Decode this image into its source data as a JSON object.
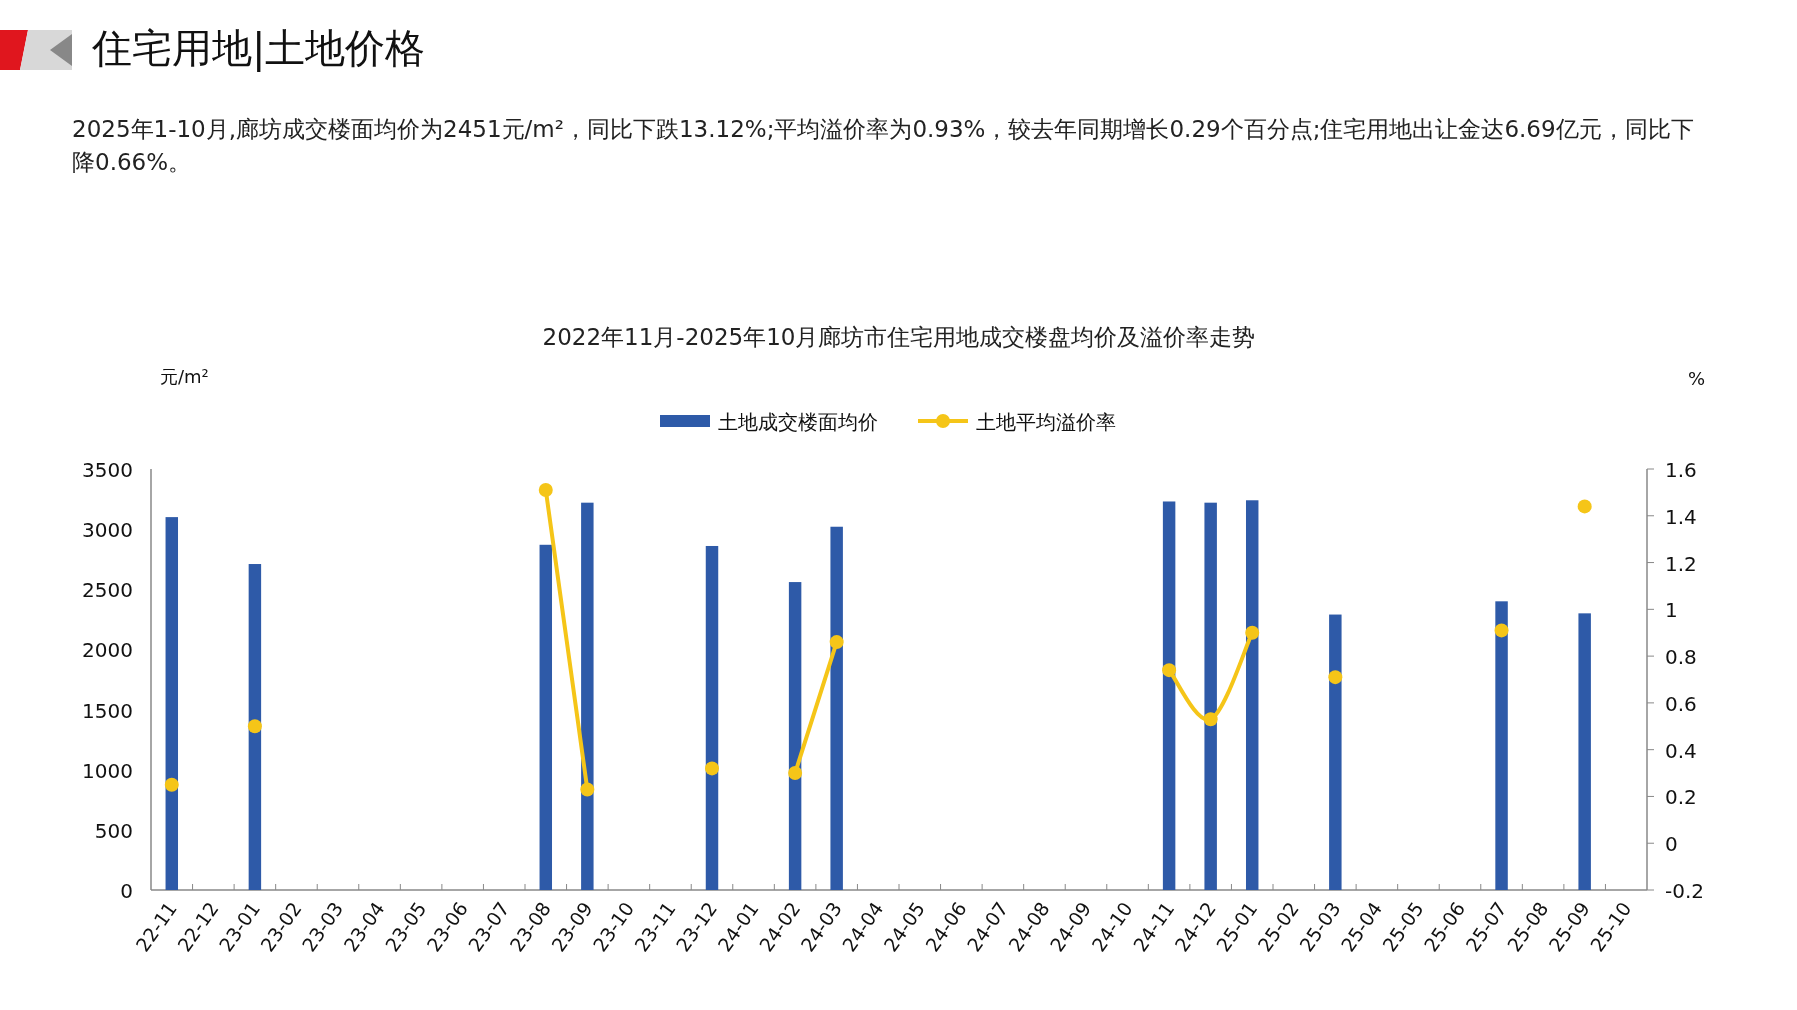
{
  "chart_data": {
    "type": "bar",
    "title": "2022年11月-2025年10月廊坊市住宅用地成交楼盘均价及溢价率走势",
    "subtitle": "住宅用地|土地价格",
    "annotations": [
      "2025年1-10月,廊坊成交楼面均价为2451元/m²，同比下跌13.12%;平均溢价率为0.93%，较去年同期增长0.29个百分点;住宅用地出让金达6.69亿元，同比下降0.66%。"
    ],
    "ylabel": "元/m²",
    "y2label": "%",
    "categories": [
      "22-11",
      "22-12",
      "23-01",
      "23-02",
      "23-03",
      "23-04",
      "23-05",
      "23-06",
      "23-07",
      "23-08",
      "23-09",
      "23-10",
      "23-11",
      "23-12",
      "24-01",
      "24-02",
      "24-03",
      "24-04",
      "24-05",
      "24-06",
      "24-07",
      "24-08",
      "24-09",
      "24-10",
      "24-11",
      "24-12",
      "25-01",
      "25-02",
      "25-03",
      "25-04",
      "25-05",
      "25-06",
      "25-07",
      "25-08",
      "25-09",
      "25-10"
    ],
    "series": [
      {
        "name": "土地成交楼面均价",
        "color": "#2e5aa8",
        "values": [
          3100,
          null,
          2710,
          null,
          null,
          null,
          null,
          null,
          null,
          2870,
          3220,
          null,
          null,
          2860,
          null,
          2560,
          3020,
          null,
          null,
          null,
          null,
          null,
          null,
          null,
          3230,
          3220,
          3240,
          null,
          2290,
          null,
          null,
          null,
          2400,
          null,
          2300,
          null
        ]
      },
      {
        "name": "土地平均溢价率",
        "type": "line",
        "axis": "y2",
        "color": "#f5c518",
        "marker": "circle",
        "values": [
          0.25,
          null,
          0.5,
          null,
          null,
          null,
          null,
          null,
          null,
          1.51,
          0.23,
          null,
          null,
          0.32,
          null,
          0.3,
          0.86,
          null,
          null,
          null,
          null,
          null,
          null,
          null,
          0.74,
          0.53,
          0.9,
          null,
          0.71,
          null,
          null,
          null,
          0.91,
          null,
          1.44,
          null
        ]
      }
    ],
    "ylim": [
      0,
      3500
    ],
    "yticks": [
      0,
      500,
      1000,
      1500,
      2000,
      2500,
      3000,
      3500
    ],
    "y2lim": [
      -0.2,
      1.6
    ],
    "y2ticks": [
      {
        "value": -0.2,
        "label": "-0.2"
      },
      0,
      {
        "value": 0.2,
        "label": "0.2"
      },
      {
        "value": 0.4,
        "label": "0.4"
      },
      {
        "value": 0.6,
        "label": "0.6"
      },
      {
        "value": 0.8,
        "label": "0.8"
      },
      1,
      {
        "value": 1.2,
        "label": "1.2"
      },
      {
        "value": 1.4,
        "label": "1.4"
      },
      {
        "value": 1.6,
        "label": "1.6"
      }
    ],
    "legend": "top",
    "grid": false
  }
}
